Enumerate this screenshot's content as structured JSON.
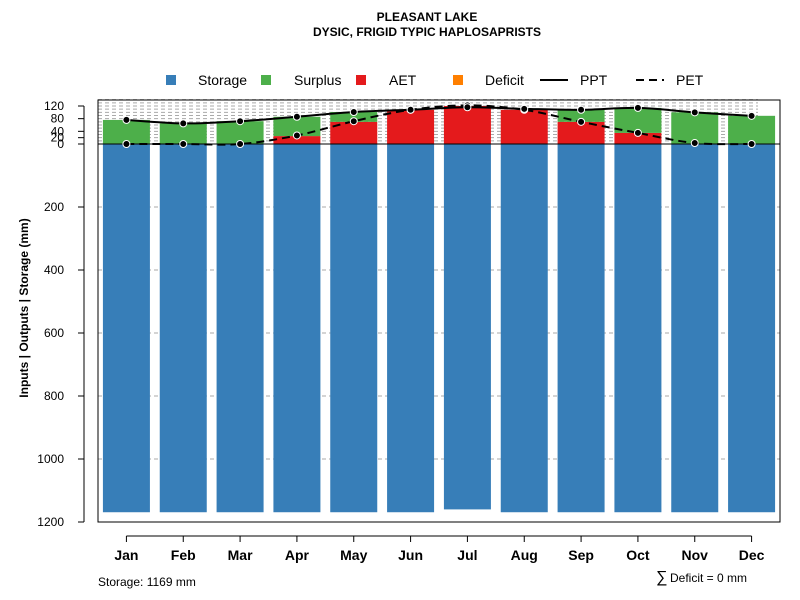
{
  "chart_data": {
    "type": "bar",
    "title": "PLEASANT LAKE",
    "subtitle": "DYSIC, FRIGID TYPIC HAPLOSAPRISTS",
    "ylabel": "Inputs | Outputs | Storage    (mm)",
    "categories": [
      "Jan",
      "Feb",
      "Mar",
      "Apr",
      "May",
      "Jun",
      "Jul",
      "Aug",
      "Sep",
      "Oct",
      "Nov",
      "Dec"
    ],
    "storage_ylim": [
      1200,
      0
    ],
    "storage_ticks": [
      0,
      200,
      400,
      600,
      800,
      1000,
      1200
    ],
    "flux_ylim": [
      0,
      120
    ],
    "flux_ticks": [
      0,
      20,
      40,
      80,
      120
    ],
    "series": [
      {
        "name": "Storage",
        "color": "#377EB8",
        "values": [
          1169,
          1169,
          1169,
          1169,
          1169,
          1169,
          1160,
          1169,
          1169,
          1169,
          1169,
          1169
        ]
      },
      {
        "name": "Surplus",
        "color": "#4DAF4A",
        "values": [
          76,
          65,
          72,
          61,
          31,
          0,
          0,
          0,
          38,
          79,
          100,
          89
        ]
      },
      {
        "name": "AET",
        "color": "#E41A1C",
        "values": [
          0,
          0,
          0,
          25,
          70,
          108,
          120,
          108,
          70,
          35,
          0,
          0
        ]
      },
      {
        "name": "Deficit",
        "color": "#FF7F00",
        "values": [
          0,
          0,
          0,
          0,
          0,
          0,
          0,
          0,
          0,
          0,
          0,
          0
        ]
      },
      {
        "name": "PPT",
        "color": "#000000",
        "linestyle": "solid",
        "values": [
          76,
          65,
          72,
          86,
          101,
          108,
          116,
          111,
          108,
          114,
          100,
          89
        ]
      },
      {
        "name": "PET",
        "color": "#000000",
        "linestyle": "dashed",
        "values": [
          0,
          0,
          0,
          27,
          72,
          108,
          122,
          108,
          70,
          35,
          3,
          0
        ]
      }
    ],
    "legend": [
      "Storage",
      "Surplus",
      "AET",
      "Deficit",
      "PPT",
      "PET"
    ],
    "legend_placement": "top-center"
  },
  "footer": {
    "storage_text": "Storage: 1169 mm",
    "deficit_symbol": "∑",
    "deficit_text": "Deficit = 0 mm"
  }
}
